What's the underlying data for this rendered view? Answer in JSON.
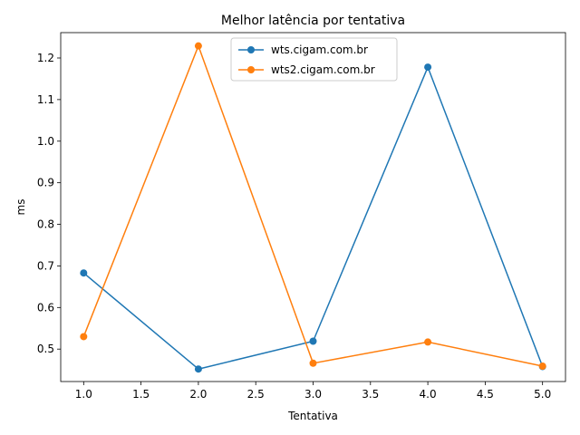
{
  "chart_data": {
    "type": "line",
    "title": "Melhor latência por tentativa",
    "xlabel": "Tentativa",
    "ylabel": "ms",
    "xlim": [
      0.8,
      5.2
    ],
    "ylim": [
      0.422,
      1.261
    ],
    "x_ticks": [
      1.0,
      1.5,
      2.0,
      2.5,
      3.0,
      3.5,
      4.0,
      4.5,
      5.0
    ],
    "y_ticks": [
      0.5,
      0.6,
      0.7,
      0.8,
      0.9,
      1.0,
      1.1,
      1.2
    ],
    "grid": false,
    "legend_position": "top-center",
    "series": [
      {
        "name": "wts.cigam.com.br",
        "color": "#1f77b4",
        "x": [
          1,
          2,
          3,
          4,
          5
        ],
        "values": [
          0.683,
          0.452,
          0.519,
          1.178,
          0.458
        ]
      },
      {
        "name": "wts2.cigam.com.br",
        "color": "#ff7f0e",
        "x": [
          1,
          2,
          3,
          4,
          5
        ],
        "values": [
          0.53,
          1.229,
          0.466,
          0.517,
          0.459
        ]
      }
    ]
  }
}
